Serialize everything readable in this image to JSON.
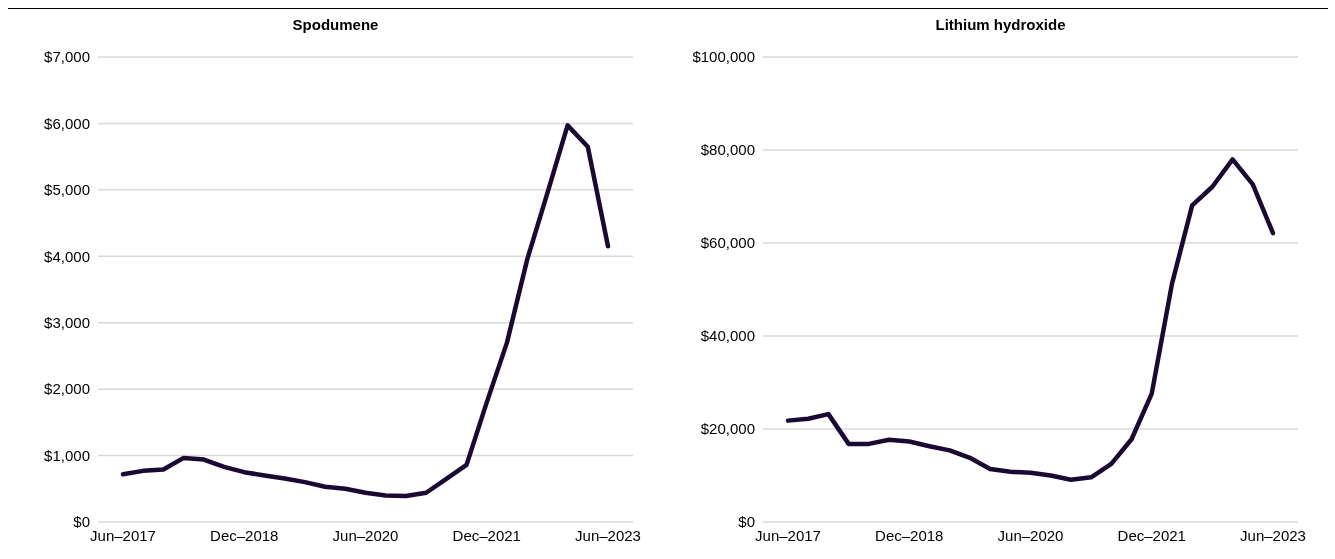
{
  "chart_data": [
    {
      "type": "line",
      "title": "Spodumene",
      "categories": [
        "Jun–2017",
        null,
        null,
        null,
        null,
        null,
        "Dec–2018",
        null,
        null,
        null,
        null,
        null,
        "Jun–2020",
        null,
        null,
        null,
        null,
        null,
        "Dec–2021",
        null,
        null,
        null,
        null,
        null,
        "Jun–2023"
      ],
      "series": [
        {
          "color": "#1a0a33",
          "values": [
            720,
            770,
            790,
            965,
            940,
            830,
            750,
            700,
            655,
            600,
            530,
            500,
            440,
            400,
            390,
            440,
            650,
            860,
            1800,
            2700,
            3950,
            4950,
            5970,
            5650,
            4150
          ]
        }
      ],
      "ylim": [
        0,
        7000
      ],
      "yticks": [
        {
          "value": 0,
          "label": "$0"
        },
        {
          "value": 1000,
          "label": "$1,000"
        },
        {
          "value": 2000,
          "label": "$2,000"
        },
        {
          "value": 3000,
          "label": "$3,000"
        },
        {
          "value": 4000,
          "label": "$4,000"
        },
        {
          "value": 5000,
          "label": "$5,000"
        },
        {
          "value": 6000,
          "label": "$6,000"
        },
        {
          "value": 7000,
          "label": "$7,000"
        }
      ],
      "grid": "y",
      "marker": "none",
      "line_style": "solid",
      "legend": false
    },
    {
      "type": "line",
      "title": "Lithium hydroxide",
      "categories": [
        "Jun–2017",
        null,
        null,
        null,
        null,
        null,
        "Dec–2018",
        null,
        null,
        null,
        null,
        null,
        "Jun–2020",
        null,
        null,
        null,
        null,
        null,
        "Dec–2021",
        null,
        null,
        null,
        null,
        null,
        "Jun–2023"
      ],
      "series": [
        {
          "color": "#1a0a33",
          "values": [
            21800,
            22200,
            23200,
            16800,
            16800,
            17700,
            17300,
            16300,
            15400,
            13800,
            11400,
            10800,
            10600,
            10000,
            9100,
            9600,
            12500,
            17800,
            27600,
            51200,
            68100,
            72100,
            78000,
            72600,
            62100
          ]
        }
      ],
      "ylim": [
        0,
        100000
      ],
      "yticks": [
        {
          "value": 0,
          "label": "$0"
        },
        {
          "value": 20000,
          "label": "$20,000"
        },
        {
          "value": 40000,
          "label": "$40,000"
        },
        {
          "value": 60000,
          "label": "$60,000"
        },
        {
          "value": 80000,
          "label": "$80,000"
        },
        {
          "value": 100000,
          "label": "$100,000"
        }
      ],
      "grid": "y",
      "marker": "none",
      "line_style": "solid",
      "legend": false
    }
  ]
}
